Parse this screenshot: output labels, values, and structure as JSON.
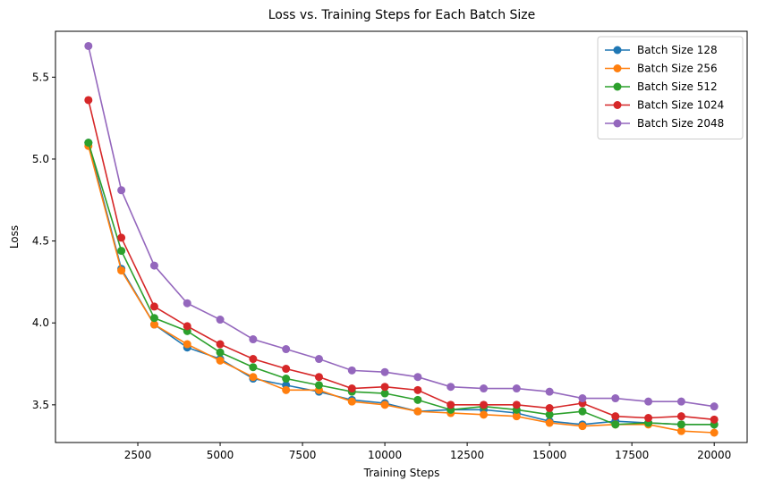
{
  "chart_data": {
    "type": "line",
    "title": "Loss vs. Training Steps for Each Batch Size",
    "xlabel": "Training Steps",
    "ylabel": "Loss",
    "xlim": [
      0,
      21000
    ],
    "ylim": [
      3.27,
      5.78
    ],
    "xticks": [
      2500,
      5000,
      7500,
      10000,
      12500,
      15000,
      17500,
      20000
    ],
    "xtick_labels": [
      "2500",
      "5000",
      "7500",
      "10000",
      "12500",
      "15000",
      "17500",
      "20000"
    ],
    "yticks": [
      3.5,
      4.0,
      4.5,
      5.0,
      5.5
    ],
    "ytick_labels": [
      "3.5",
      "4.0",
      "4.5",
      "5.0",
      "5.5"
    ],
    "grid": false,
    "legend_position": "top-right",
    "x": [
      1000,
      2000,
      3000,
      4000,
      5000,
      6000,
      7000,
      8000,
      9000,
      10000,
      11000,
      12000,
      13000,
      14000,
      15000,
      16000,
      17000,
      18000,
      19000,
      20000
    ],
    "series": [
      {
        "name": "Batch Size 128",
        "color": "#1f77b4",
        "values": [
          5.1,
          4.33,
          3.99,
          3.85,
          3.78,
          3.66,
          3.62,
          3.58,
          3.53,
          3.51,
          3.46,
          3.47,
          3.47,
          3.45,
          3.4,
          3.38,
          3.4,
          3.39,
          3.38,
          3.38
        ]
      },
      {
        "name": "Batch Size 256",
        "color": "#ff7f0e",
        "values": [
          5.08,
          4.32,
          3.99,
          3.87,
          3.77,
          3.67,
          3.59,
          3.59,
          3.52,
          3.5,
          3.46,
          3.45,
          3.44,
          3.43,
          3.39,
          3.37,
          3.38,
          3.38,
          3.34,
          3.33
        ]
      },
      {
        "name": "Batch Size 512",
        "color": "#2ca02c",
        "values": [
          5.1,
          4.44,
          4.03,
          3.95,
          3.82,
          3.73,
          3.66,
          3.62,
          3.58,
          3.57,
          3.53,
          3.47,
          3.49,
          3.47,
          3.44,
          3.46,
          3.38,
          3.39,
          3.38,
          3.38
        ]
      },
      {
        "name": "Batch Size 1024",
        "color": "#d62728",
        "values": [
          5.36,
          4.52,
          4.1,
          3.98,
          3.87,
          3.78,
          3.72,
          3.67,
          3.6,
          3.61,
          3.59,
          3.5,
          3.5,
          3.5,
          3.48,
          3.51,
          3.43,
          3.42,
          3.43,
          3.41
        ]
      },
      {
        "name": "Batch Size 2048",
        "color": "#9467bd",
        "values": [
          5.69,
          4.81,
          4.35,
          4.12,
          4.02,
          3.9,
          3.84,
          3.78,
          3.71,
          3.7,
          3.67,
          3.61,
          3.6,
          3.6,
          3.58,
          3.54,
          3.54,
          3.52,
          3.52,
          3.49
        ]
      }
    ]
  }
}
